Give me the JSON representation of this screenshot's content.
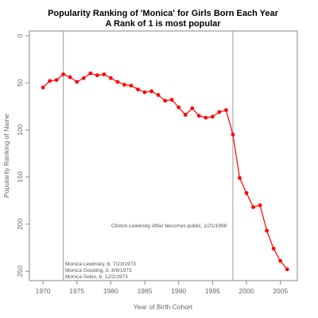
{
  "chart_data": {
    "type": "line",
    "title": "Popularity Ranking of 'Monica' for Girls Born Each Year",
    "subtitle": "A Rank of 1 is most popular",
    "xlabel": "Year of Birth Cohort",
    "ylabel": "Popularity Ranking of Name",
    "xlim": [
      1968,
      2007.5
    ],
    "ylim": [
      -5,
      260
    ],
    "y_reversed": true,
    "x_ticks": [
      1970,
      1975,
      1980,
      1985,
      1990,
      1995,
      2000,
      2005
    ],
    "y_ticks": [
      0,
      50,
      100,
      150,
      200,
      250
    ],
    "grid": false,
    "series_color": "#ff0000",
    "vline_color": "#999999",
    "series": [
      {
        "x": [
          1970,
          1971,
          1972,
          1973,
          1974,
          1975,
          1976,
          1977,
          1978,
          1979,
          1980,
          1981,
          1982,
          1983,
          1984,
          1985,
          1986,
          1987,
          1988,
          1989,
          1990,
          1991,
          1992,
          1993,
          1994,
          1995,
          1996,
          1997,
          1998,
          1999,
          2000,
          2001,
          2002,
          2003,
          2004,
          2005,
          2006
        ],
        "y": [
          55,
          48,
          47,
          41,
          44,
          49,
          45,
          40,
          42,
          41,
          45,
          49,
          52,
          53,
          57,
          60,
          59,
          63,
          69,
          68,
          76,
          84,
          77,
          85,
          87,
          86,
          81,
          79,
          105,
          151,
          167,
          182,
          180,
          207,
          226,
          239,
          248
        ]
      }
    ],
    "vlines": [
      1973,
      1998
    ],
    "annotations": {
      "affair": "Clinton-Lewinsky Affair becomes public, 1/21/1998",
      "notes": [
        "Monica Lewinsky, b. 7/23/1973",
        "Monica Gooding, b. 8/6/1973",
        "Monica Seles, b. 12/2/1973"
      ]
    }
  }
}
